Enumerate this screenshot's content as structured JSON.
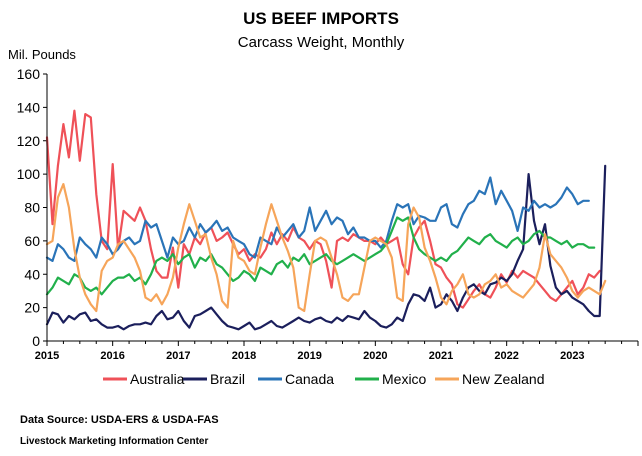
{
  "colors": {
    "Australia": "#ef5158",
    "Brazil": "#1b1f5c",
    "Canada": "#2a74b8",
    "Mexico": "#21b04b",
    "New Zealand": "#f6a55a"
  },
  "chart_data": {
    "type": "line",
    "title": "US BEEF IMPORTS",
    "subtitle": "Carcass Weight, Monthly",
    "ylabel": "Mil. Pounds",
    "xlabel": "",
    "ylim": [
      0,
      160
    ],
    "yticks": [
      0,
      20,
      40,
      60,
      80,
      100,
      120,
      140,
      160
    ],
    "xlim": [
      2015,
      2024
    ],
    "xticks": [
      "2015",
      "2016",
      "2017",
      "2018",
      "2019",
      "2020",
      "2021",
      "2022",
      "2023"
    ],
    "x_start": "2015-01",
    "x_step": "month",
    "grid": false,
    "legend": "bottom",
    "series": [
      {
        "name": "Australia",
        "values": [
          122,
          70,
          105,
          130,
          110,
          138,
          108,
          136,
          134,
          88,
          60,
          55,
          106,
          55,
          78,
          75,
          72,
          80,
          72,
          55,
          42,
          38,
          38,
          56,
          32,
          58,
          52,
          62,
          58,
          65,
          68,
          60,
          62,
          65,
          58,
          52,
          55,
          48,
          52,
          50,
          55,
          65,
          58,
          64,
          60,
          68,
          62,
          60,
          55,
          60,
          58,
          48,
          32,
          60,
          62,
          60,
          64,
          62,
          60,
          60,
          58,
          62,
          58,
          60,
          62,
          46,
          40,
          62,
          68,
          72,
          60,
          46,
          44,
          38,
          34,
          22,
          20,
          25,
          30,
          34,
          28,
          26,
          32,
          40,
          35,
          42,
          38,
          42,
          40,
          38,
          34,
          30,
          26,
          24,
          28,
          32,
          36,
          28,
          32,
          40,
          38,
          42
        ]
      },
      {
        "name": "Brazil",
        "values": [
          10,
          17,
          16,
          11,
          15,
          13,
          16,
          17,
          12,
          13,
          10,
          8,
          8,
          9,
          7,
          9,
          10,
          10,
          11,
          10,
          15,
          18,
          13,
          14,
          18,
          12,
          8,
          15,
          16,
          18,
          20,
          16,
          12,
          9,
          8,
          7,
          9,
          11,
          7,
          8,
          10,
          12,
          9,
          8,
          10,
          12,
          14,
          12,
          11,
          13,
          14,
          12,
          11,
          14,
          12,
          15,
          14,
          13,
          18,
          14,
          12,
          9,
          8,
          10,
          14,
          12,
          22,
          28,
          27,
          24,
          32,
          20,
          22,
          28,
          24,
          18,
          26,
          32,
          34,
          30,
          28,
          34,
          35,
          38,
          36,
          40,
          48,
          55,
          100,
          72,
          58,
          70,
          45,
          32,
          28,
          30,
          26,
          24,
          22,
          18,
          15,
          15,
          105
        ]
      },
      {
        "name": "Canada",
        "values": [
          50,
          48,
          58,
          55,
          50,
          48,
          62,
          58,
          55,
          50,
          62,
          58,
          52,
          55,
          60,
          62,
          58,
          60,
          72,
          68,
          70,
          60,
          50,
          62,
          58,
          60,
          68,
          62,
          70,
          65,
          68,
          72,
          66,
          68,
          62,
          60,
          58,
          52,
          50,
          62,
          60,
          58,
          68,
          62,
          66,
          70,
          62,
          66,
          80,
          66,
          72,
          78,
          70,
          74,
          72,
          64,
          68,
          62,
          62,
          60,
          60,
          56,
          60,
          72,
          82,
          80,
          82,
          70,
          75,
          74,
          72,
          72,
          80,
          82,
          70,
          68,
          76,
          82,
          84,
          90,
          88,
          98,
          82,
          90,
          84,
          78,
          66,
          80,
          78,
          84,
          80,
          82,
          80,
          82,
          86,
          92,
          88,
          82,
          84,
          84
        ]
      },
      {
        "name": "Mexico",
        "values": [
          28,
          32,
          38,
          36,
          34,
          40,
          38,
          32,
          30,
          32,
          28,
          32,
          36,
          38,
          38,
          40,
          36,
          38,
          34,
          40,
          48,
          50,
          48,
          52,
          46,
          50,
          52,
          44,
          50,
          48,
          52,
          46,
          44,
          40,
          36,
          38,
          42,
          40,
          36,
          44,
          42,
          40,
          46,
          48,
          44,
          50,
          48,
          52,
          46,
          48,
          50,
          52,
          48,
          46,
          48,
          50,
          52,
          50,
          48,
          50,
          52,
          54,
          58,
          66,
          74,
          72,
          74,
          62,
          55,
          52,
          50,
          48,
          50,
          48,
          52,
          54,
          58,
          62,
          60,
          58,
          62,
          64,
          60,
          58,
          56,
          60,
          62,
          58,
          60,
          64,
          66,
          62,
          62,
          60,
          58,
          60,
          56,
          58,
          58,
          56,
          56
        ]
      },
      {
        "name": "New Zealand",
        "values": [
          58,
          60,
          86,
          94,
          80,
          55,
          38,
          28,
          22,
          18,
          42,
          48,
          50,
          58,
          60,
          55,
          50,
          42,
          26,
          24,
          28,
          22,
          28,
          38,
          56,
          70,
          82,
          72,
          62,
          64,
          50,
          40,
          24,
          20,
          60,
          50,
          48,
          42,
          40,
          56,
          70,
          82,
          72,
          62,
          54,
          44,
          20,
          18,
          40,
          60,
          62,
          60,
          50,
          40,
          26,
          24,
          28,
          28,
          44,
          60,
          62,
          60,
          58,
          50,
          26,
          24,
          70,
          80,
          74,
          56,
          48,
          38,
          26,
          22,
          30,
          34,
          40,
          28,
          26,
          28,
          34,
          36,
          40,
          32,
          34,
          30,
          28,
          26,
          30,
          34,
          44,
          64,
          52,
          48,
          44,
          38,
          30,
          26,
          30,
          32,
          30,
          28,
          36
        ]
      }
    ]
  },
  "footer": {
    "source": "Data Source:  USDA-ERS & USDA-FAS",
    "org": "Livestock Marketing Information Center"
  }
}
